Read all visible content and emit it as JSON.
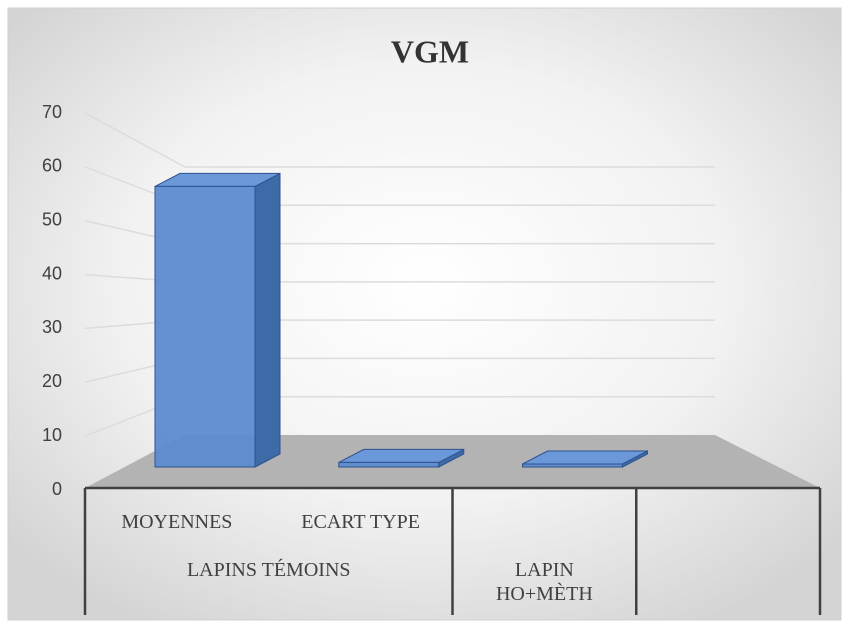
{
  "chart_data": {
    "type": "bar3d",
    "title": "VGM",
    "categories": [
      "MOYENNES",
      "ECART TYPE",
      null,
      null
    ],
    "category_groups": [
      "LAPINS TÉMOINS",
      "LAPINS TÉMOINS",
      "LAPIN HO+MÈTH",
      null
    ],
    "values": [
      61,
      1,
      0.2,
      null
    ],
    "color": "#5b8bd0",
    "ylim": [
      0,
      70
    ],
    "yticks": [
      0,
      10,
      20,
      30,
      40,
      50,
      60,
      70
    ],
    "grid": true
  }
}
